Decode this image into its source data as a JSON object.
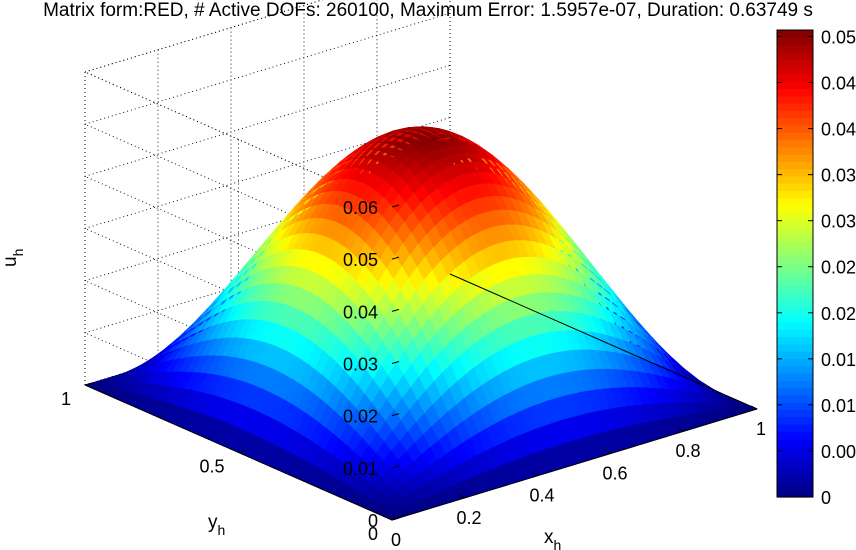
{
  "chart_data": {
    "type": "surface",
    "title": "Matrix form:RED, # Active DOFs: 260100, Maximum Error: 1.5957e-07, Duration: 0.63749 s",
    "xlabel": "x",
    "xlabel_sub": "h",
    "ylabel": "y",
    "ylabel_sub": "h",
    "zlabel": "u",
    "zlabel_sub": "h",
    "xlim": [
      0,
      1
    ],
    "ylim": [
      0,
      1
    ],
    "zlim": [
      0,
      0.06
    ],
    "x_ticks": [
      "0",
      "0.2",
      "0.4",
      "0.6",
      "0.8",
      "1"
    ],
    "y_ticks": [
      "0",
      "0.5",
      "1"
    ],
    "z_ticks": [
      "0",
      "0.01",
      "0.02",
      "0.03",
      "0.04",
      "0.05",
      "0.06"
    ],
    "surface_peak": 0.0507,
    "colormap": "jet",
    "colorbar": {
      "limits": [
        0,
        0.0507
      ],
      "ticks": [
        "0",
        "0.005",
        "0.01",
        "0.015",
        "0.02",
        "0.025",
        "0.03",
        "0.035",
        "0.04",
        "0.045",
        "0.05"
      ]
    },
    "grid": true,
    "box": true
  }
}
